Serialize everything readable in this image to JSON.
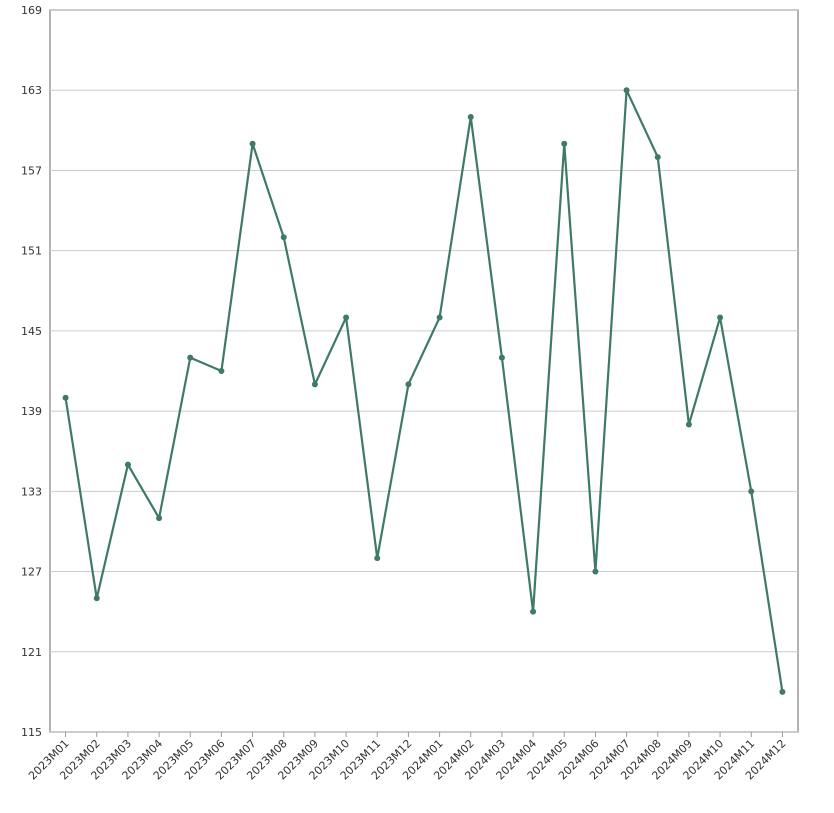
{
  "chart_data": {
    "type": "line",
    "categories": [
      "2023M01",
      "2023M02",
      "2023M03",
      "2023M04",
      "2023M05",
      "2023M06",
      "2023M07",
      "2023M08",
      "2023M09",
      "2023M10",
      "2023M11",
      "2023M12",
      "2024M01",
      "2024M02",
      "2024M03",
      "2024M04",
      "2024M05",
      "2024M06",
      "2024M07",
      "2024M08",
      "2024M09",
      "2024M10",
      "2024M11",
      "2024M12"
    ],
    "values": [
      140,
      125,
      135,
      131,
      143,
      142,
      159,
      152,
      141,
      146,
      128,
      141,
      146,
      161,
      143,
      124,
      159,
      127,
      163,
      158,
      138,
      146,
      133,
      118
    ],
    "color": "#3f7a66",
    "ylim": [
      115,
      169
    ],
    "yticks": [
      115,
      121,
      127,
      133,
      139,
      145,
      151,
      157,
      163,
      169
    ],
    "grid": true
  }
}
